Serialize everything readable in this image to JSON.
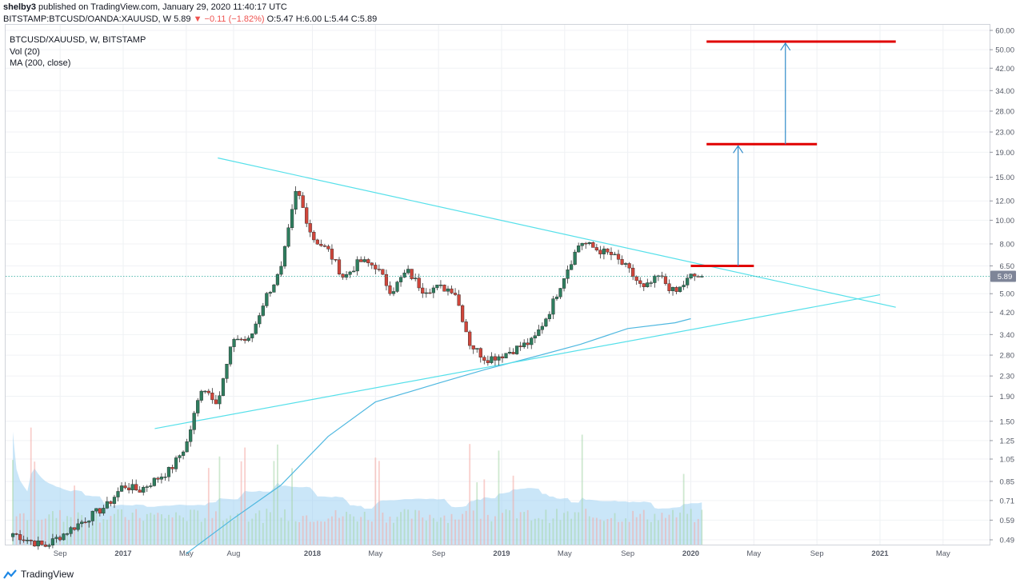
{
  "header": {
    "author": "shelby3",
    "published": " published on TradingView.com, January 29, 2020 11:40:17 UTC",
    "symbol_line_prefix": "BITSTAMP:BTCUSD/OANDA:XAUUSD, W",
    "last": "5.89",
    "change": "▼ −0.11 (−1.82%)",
    "ohlc": "O:5.47 H:6.00 L:5.44 C:5.89"
  },
  "legend": {
    "title": "BTCUSD/XAUUSD, W, BITSTAMP",
    "vol": "Vol (20)",
    "ma": "MA (200, close)"
  },
  "footer": {
    "brand": "TradingView"
  },
  "colors": {
    "up": "#26a69a",
    "down": "#ef5350",
    "candle_up_fill": "#2e7d5e",
    "candle_down_fill": "#d0463b",
    "trendline": "#56e0ea",
    "ma": "#4fb8e0",
    "target": "#e00000",
    "arrow": "#2e8bc9",
    "volume_ma": "#9fd1f3",
    "price_label_bg": "#7e8598"
  },
  "chart_data": {
    "type": "candlestick",
    "title": "BTCUSD/XAUUSD, W, BITSTAMP",
    "scale": "log",
    "y_ticks": [
      60.0,
      50.0,
      42.0,
      34.0,
      28.0,
      23.0,
      19.0,
      15.0,
      12.0,
      10.0,
      8.0,
      6.5,
      5.0,
      4.2,
      3.4,
      2.8,
      2.3,
      1.9,
      1.5,
      1.25,
      1.05,
      0.85,
      0.71,
      0.59,
      0.49
    ],
    "x_ticks": [
      {
        "date": "2016-09",
        "label": "Sep",
        "bold": false
      },
      {
        "date": "2017-01",
        "label": "2017",
        "bold": true
      },
      {
        "date": "2017-05",
        "label": "May",
        "bold": false
      },
      {
        "date": "2017-08",
        "label": "Aug",
        "bold": false
      },
      {
        "date": "2018-01",
        "label": "2018",
        "bold": true
      },
      {
        "date": "2018-05",
        "label": "May",
        "bold": false
      },
      {
        "date": "2018-09",
        "label": "Sep",
        "bold": false
      },
      {
        "date": "2019-01",
        "label": "2019",
        "bold": true
      },
      {
        "date": "2019-05",
        "label": "May",
        "bold": false
      },
      {
        "date": "2019-09",
        "label": "Sep",
        "bold": false
      },
      {
        "date": "2020-01",
        "label": "2020",
        "bold": true
      },
      {
        "date": "2020-05",
        "label": "May",
        "bold": false
      },
      {
        "date": "2020-09",
        "label": "Sep",
        "bold": false
      },
      {
        "date": "2021-01",
        "label": "2021",
        "bold": true
      },
      {
        "date": "2021-05",
        "label": "May",
        "bold": false
      }
    ],
    "current_price": 5.89,
    "current_price_label": "5.89",
    "price_keypoints": [
      {
        "date": "2016-06",
        "close": 0.52
      },
      {
        "date": "2016-08",
        "close": 0.46
      },
      {
        "date": "2016-10",
        "close": 0.56
      },
      {
        "date": "2016-12",
        "close": 0.68
      },
      {
        "date": "2017-01",
        "close": 0.82
      },
      {
        "date": "2017-02",
        "close": 0.78
      },
      {
        "date": "2017-04",
        "close": 0.95
      },
      {
        "date": "2017-05",
        "close": 1.2
      },
      {
        "date": "2017-06",
        "close": 2.1
      },
      {
        "date": "2017-07",
        "close": 1.8
      },
      {
        "date": "2017-08",
        "close": 3.3
      },
      {
        "date": "2017-09",
        "close": 3.2
      },
      {
        "date": "2017-10",
        "close": 4.8
      },
      {
        "date": "2017-11",
        "close": 6.2
      },
      {
        "date": "2017-12",
        "close": 13.5
      },
      {
        "date": "2018-01",
        "close": 8.5
      },
      {
        "date": "2018-02",
        "close": 7.5
      },
      {
        "date": "2018-03",
        "close": 5.8
      },
      {
        "date": "2018-04",
        "close": 6.8
      },
      {
        "date": "2018-05",
        "close": 6.5
      },
      {
        "date": "2018-06",
        "close": 5.1
      },
      {
        "date": "2018-07",
        "close": 6.2
      },
      {
        "date": "2018-08",
        "close": 5.2
      },
      {
        "date": "2018-09",
        "close": 5.3
      },
      {
        "date": "2018-10",
        "close": 5.2
      },
      {
        "date": "2018-11",
        "close": 3.1
      },
      {
        "date": "2018-12",
        "close": 2.7
      },
      {
        "date": "2019-01",
        "close": 2.8
      },
      {
        "date": "2019-02",
        "close": 3.0
      },
      {
        "date": "2019-03",
        "close": 3.2
      },
      {
        "date": "2019-04",
        "close": 4.2
      },
      {
        "date": "2019-05",
        "close": 6.0
      },
      {
        "date": "2019-06",
        "close": 8.2
      },
      {
        "date": "2019-07",
        "close": 7.6
      },
      {
        "date": "2019-08",
        "close": 7.2
      },
      {
        "date": "2019-09",
        "close": 6.3
      },
      {
        "date": "2019-10",
        "close": 5.2
      },
      {
        "date": "2019-11",
        "close": 5.9
      },
      {
        "date": "2019-12",
        "close": 5.0
      },
      {
        "date": "2020-01",
        "close": 5.89
      }
    ],
    "ma200_keypoints": [
      {
        "date": "2017-05",
        "value": 0.43
      },
      {
        "date": "2017-08",
        "value": 0.6
      },
      {
        "date": "2017-11",
        "value": 0.82
      },
      {
        "date": "2018-02",
        "value": 1.3
      },
      {
        "date": "2018-05",
        "value": 1.8
      },
      {
        "date": "2018-09",
        "value": 2.15
      },
      {
        "date": "2018-12",
        "value": 2.45
      },
      {
        "date": "2019-03",
        "value": 2.75
      },
      {
        "date": "2019-06",
        "value": 3.1
      },
      {
        "date": "2019-09",
        "value": 3.6
      },
      {
        "date": "2019-12",
        "value": 3.8
      },
      {
        "date": "2020-01",
        "value": 3.95
      }
    ],
    "trendlines": [
      {
        "name": "resistance",
        "from": {
          "date": "2017-07",
          "value": 18.0
        },
        "to": {
          "date": "2021-02",
          "value": 4.4
        }
      },
      {
        "name": "support",
        "from": {
          "date": "2017-03",
          "value": 1.4
        },
        "to": {
          "date": "2021-01",
          "value": 4.95
        }
      }
    ],
    "horizontal_targets": [
      {
        "from_date": "2020-01",
        "to_date": "2020-05",
        "value": 6.5
      },
      {
        "from_date": "2020-02",
        "to_date": "2020-09",
        "value": 20.5
      },
      {
        "from_date": "2020-02",
        "to_date": "2021-02",
        "value": 54.0
      }
    ],
    "arrows": [
      {
        "date": "2020-04",
        "from": 6.5,
        "to": 20.5
      },
      {
        "date": "2020-07",
        "from": 20.5,
        "to": 54.0
      }
    ]
  }
}
